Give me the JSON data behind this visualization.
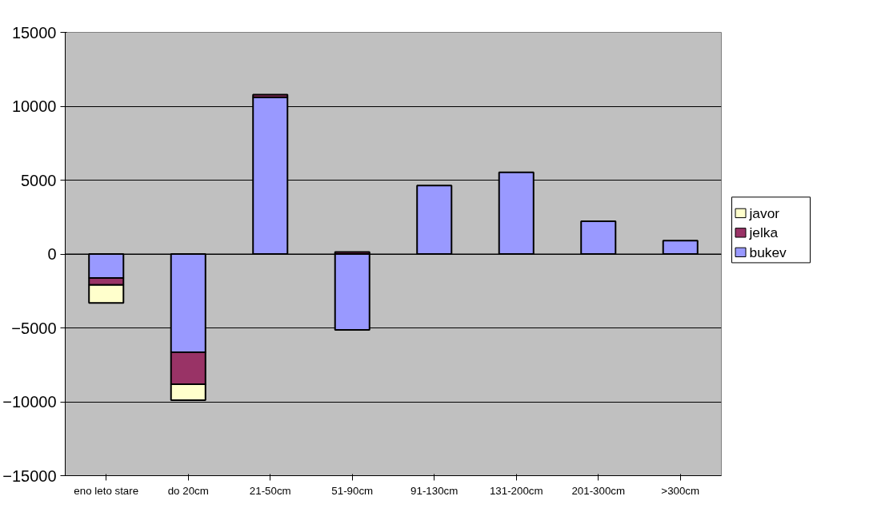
{
  "chart_data": {
    "type": "bar",
    "stacked": true,
    "categories": [
      "eno leto stare",
      "do 20cm",
      "21-50cm",
      "51-90cm",
      "91-130cm",
      "131-200cm",
      "201-300cm",
      ">300cm"
    ],
    "series": [
      {
        "name": "bukev",
        "color": "#9999ff",
        "values": [
          -1620,
          -6650,
          10610,
          -5130,
          4640,
          5530,
          2220,
          910
        ]
      },
      {
        "name": "jelka",
        "color": "#993366",
        "values": [
          -470,
          -2160,
          180,
          140,
          0,
          0,
          0,
          0
        ]
      },
      {
        "name": "javor",
        "color": "#ffffcc",
        "values": [
          -1220,
          -1080,
          0,
          0,
          0,
          0,
          0,
          0
        ]
      }
    ],
    "ylim": [
      -15000,
      15000
    ],
    "yticks": [
      -15000,
      -10000,
      -5000,
      0,
      5000,
      10000,
      15000
    ],
    "grid": "y",
    "legend": "right"
  }
}
